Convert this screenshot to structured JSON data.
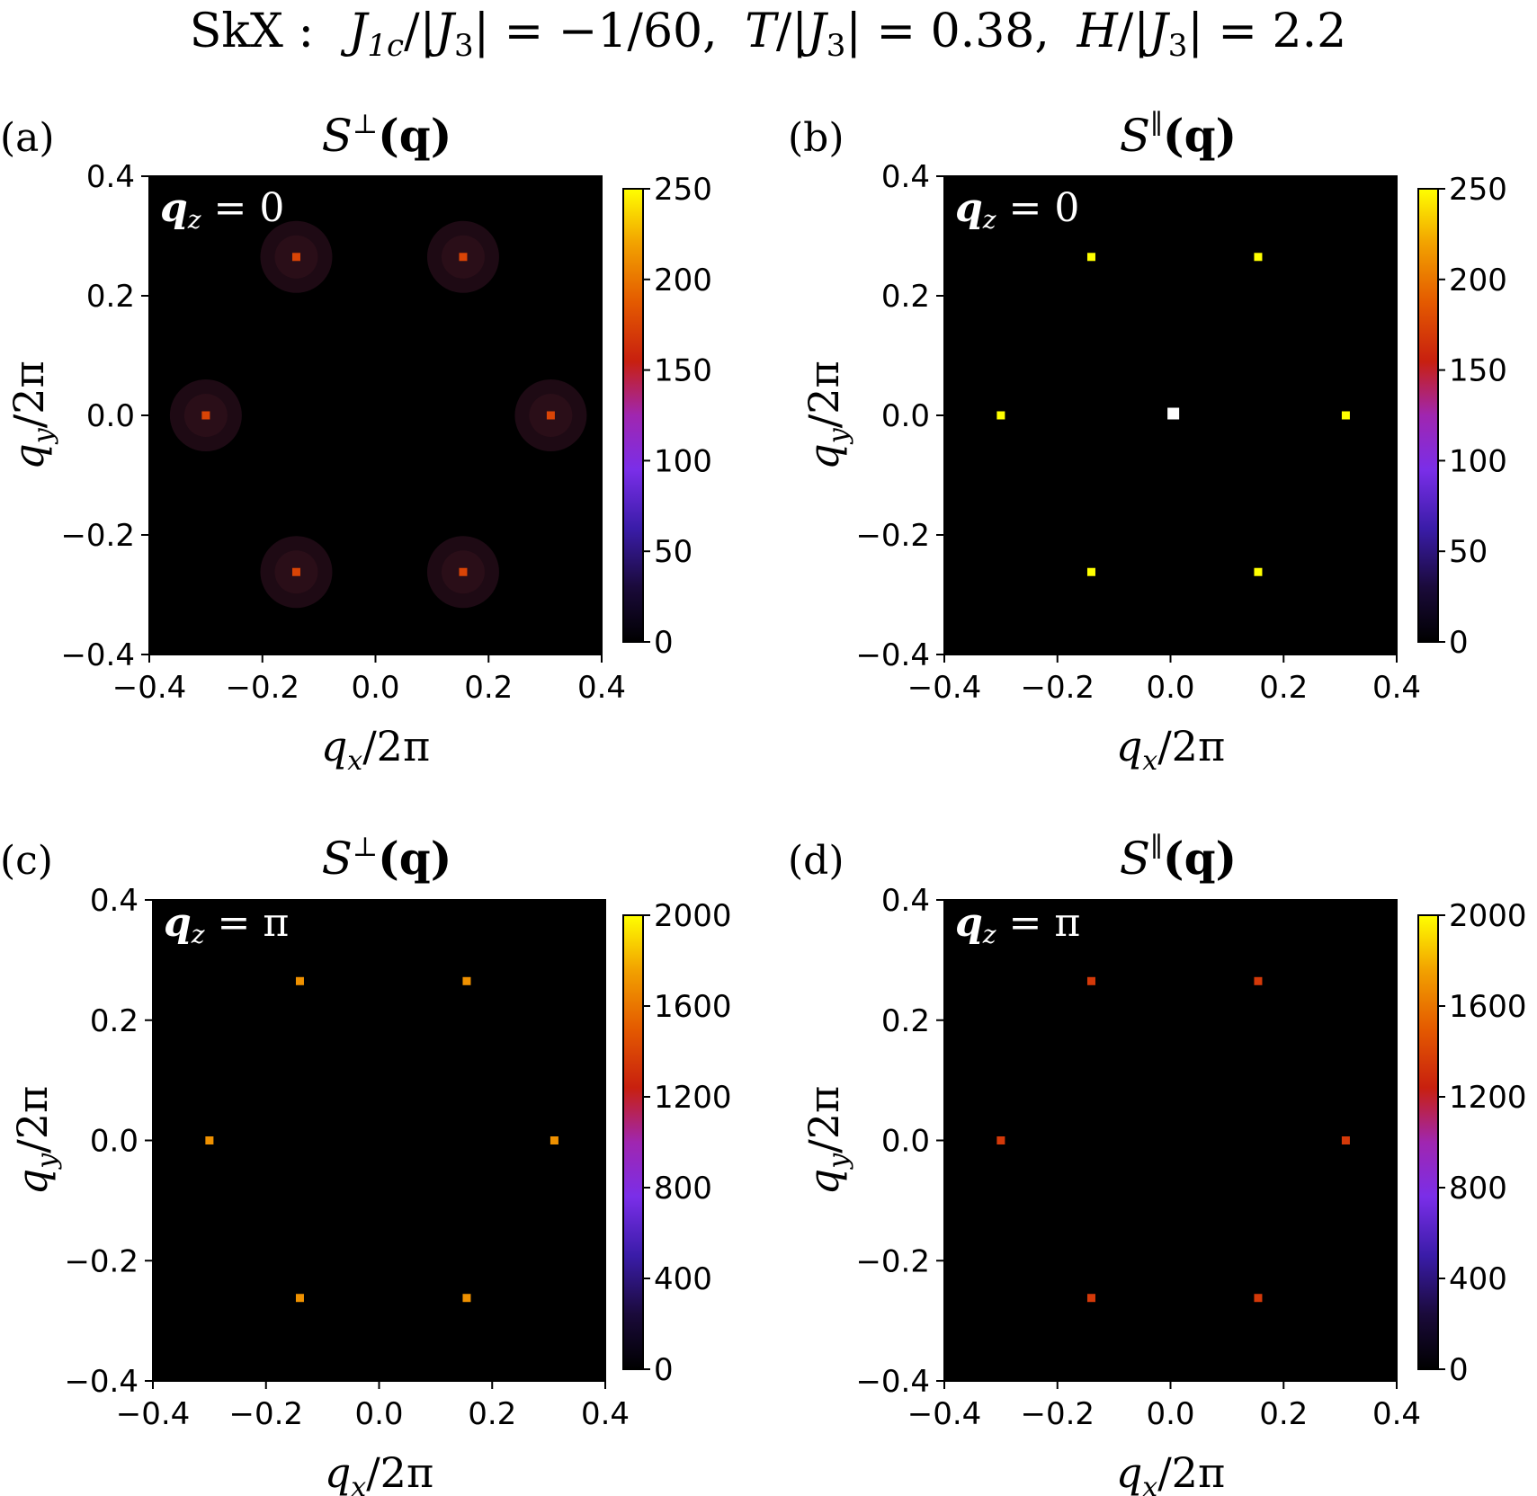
{
  "figure_title": "SkX :  J1c/|J3| = −1/60,  T/|J3| = 0.38,  H/|J3| = 2.2",
  "title_parts": {
    "prefix": "SkX :",
    "j_sym": "J",
    "j_sub": "1c",
    "j3_sym": "J",
    "j3_sub": "3",
    "eq1": "= −1/60,",
    "t_sym": "T",
    "eq2": "= 0.38,",
    "h_sym": "H",
    "eq3": "= 2.2"
  },
  "axis_labels": {
    "x_main": "q",
    "x_sub": "x",
    "x_rest": "/2π",
    "y_main": "q",
    "y_sub": "y",
    "y_rest": "/2π"
  },
  "colors": {
    "background": "#000000",
    "colormap": "gnuplot2-like (black → purple → red → orange → yellow)",
    "center_peak": "#ffffff"
  },
  "chart_data": [
    {
      "type": "heatmap",
      "panel_label": "(a)",
      "title_sym": "S",
      "title_sup": "⊥",
      "title_arg": "(q)",
      "annotation_main": "q",
      "annotation_sub": "z",
      "annotation_rest": "= 0",
      "xlim": [
        -0.4,
        0.4
      ],
      "ylim": [
        -0.4,
        0.4
      ],
      "xticks": [
        "−0.4",
        "−0.2",
        "0.0",
        "0.2",
        "0.4"
      ],
      "yticks": [
        "−0.4",
        "−0.2",
        "0.0",
        "0.2",
        "0.4"
      ],
      "colorbar_range": [
        0,
        250
      ],
      "colorbar_ticks": [
        "0",
        "50",
        "100",
        "150",
        "200",
        "250"
      ],
      "peaks": [
        {
          "qx": -0.14,
          "qy": 0.265,
          "value": 175,
          "halo": true
        },
        {
          "qx": 0.155,
          "qy": 0.265,
          "value": 175,
          "halo": true
        },
        {
          "qx": -0.3,
          "qy": 0.0,
          "value": 175,
          "halo": true
        },
        {
          "qx": 0.31,
          "qy": 0.0,
          "value": 175,
          "halo": true
        },
        {
          "qx": -0.14,
          "qy": -0.262,
          "value": 175,
          "halo": true
        },
        {
          "qx": 0.155,
          "qy": -0.262,
          "value": 175,
          "halo": true
        }
      ]
    },
    {
      "type": "heatmap",
      "panel_label": "(b)",
      "title_sym": "S",
      "title_sup": "∥",
      "title_arg": "(q)",
      "annotation_main": "q",
      "annotation_sub": "z",
      "annotation_rest": "= 0",
      "xlim": [
        -0.4,
        0.4
      ],
      "ylim": [
        -0.4,
        0.4
      ],
      "xticks": [
        "−0.4",
        "−0.2",
        "0.0",
        "0.2",
        "0.4"
      ],
      "yticks": [
        "−0.4",
        "−0.2",
        "0.0",
        "0.2",
        "0.4"
      ],
      "colorbar_range": [
        0,
        250
      ],
      "colorbar_ticks": [
        "0",
        "50",
        "100",
        "150",
        "200",
        "250"
      ],
      "peaks": [
        {
          "qx": -0.14,
          "qy": 0.265,
          "value": 250,
          "halo": false
        },
        {
          "qx": 0.155,
          "qy": 0.265,
          "value": 250,
          "halo": false
        },
        {
          "qx": -0.3,
          "qy": 0.0,
          "value": 250,
          "halo": false
        },
        {
          "qx": 0.31,
          "qy": 0.0,
          "value": 250,
          "halo": false
        },
        {
          "qx": -0.14,
          "qy": -0.262,
          "value": 250,
          "halo": false
        },
        {
          "qx": 0.155,
          "qy": -0.262,
          "value": 250,
          "halo": false
        },
        {
          "qx": 0.005,
          "qy": 0.003,
          "value": 300,
          "halo": false,
          "center": true
        }
      ]
    },
    {
      "type": "heatmap",
      "panel_label": "(c)",
      "title_sym": "S",
      "title_sup": "⊥",
      "title_arg": "(q)",
      "annotation_main": "q",
      "annotation_sub": "z",
      "annotation_rest": "= π",
      "xlim": [
        -0.4,
        0.4
      ],
      "ylim": [
        -0.4,
        0.4
      ],
      "xticks": [
        "−0.4",
        "−0.2",
        "0.0",
        "0.2",
        "0.4"
      ],
      "yticks": [
        "−0.4",
        "−0.2",
        "0.0",
        "0.2",
        "0.4"
      ],
      "colorbar_range": [
        0,
        2000
      ],
      "colorbar_ticks": [
        "0",
        "400",
        "800",
        "1200",
        "1600",
        "2000"
      ],
      "peaks": [
        {
          "qx": -0.14,
          "qy": 0.265,
          "value": 1700,
          "halo": false
        },
        {
          "qx": 0.155,
          "qy": 0.265,
          "value": 1700,
          "halo": false
        },
        {
          "qx": -0.3,
          "qy": 0.0,
          "value": 1700,
          "halo": false
        },
        {
          "qx": 0.31,
          "qy": 0.0,
          "value": 1700,
          "halo": false
        },
        {
          "qx": -0.14,
          "qy": -0.262,
          "value": 1700,
          "halo": false
        },
        {
          "qx": 0.155,
          "qy": -0.262,
          "value": 1700,
          "halo": false
        }
      ]
    },
    {
      "type": "heatmap",
      "panel_label": "(d)",
      "title_sym": "S",
      "title_sup": "∥",
      "title_arg": "(q)",
      "annotation_main": "q",
      "annotation_sub": "z",
      "annotation_rest": "= π",
      "xlim": [
        -0.4,
        0.4
      ],
      "ylim": [
        -0.4,
        0.4
      ],
      "xticks": [
        "−0.4",
        "−0.2",
        "0.0",
        "0.2",
        "0.4"
      ],
      "yticks": [
        "−0.4",
        "−0.2",
        "0.0",
        "0.2",
        "0.4"
      ],
      "colorbar_range": [
        0,
        2000
      ],
      "colorbar_ticks": [
        "0",
        "400",
        "800",
        "1200",
        "1600",
        "2000"
      ],
      "peaks": [
        {
          "qx": -0.14,
          "qy": 0.265,
          "value": 1350,
          "halo": false
        },
        {
          "qx": 0.155,
          "qy": 0.265,
          "value": 1350,
          "halo": false
        },
        {
          "qx": -0.3,
          "qy": 0.0,
          "value": 1350,
          "halo": false
        },
        {
          "qx": 0.31,
          "qy": 0.0,
          "value": 1350,
          "halo": false
        },
        {
          "qx": -0.14,
          "qy": -0.262,
          "value": 1350,
          "halo": false
        },
        {
          "qx": 0.155,
          "qy": -0.262,
          "value": 1350,
          "halo": false
        }
      ]
    }
  ]
}
